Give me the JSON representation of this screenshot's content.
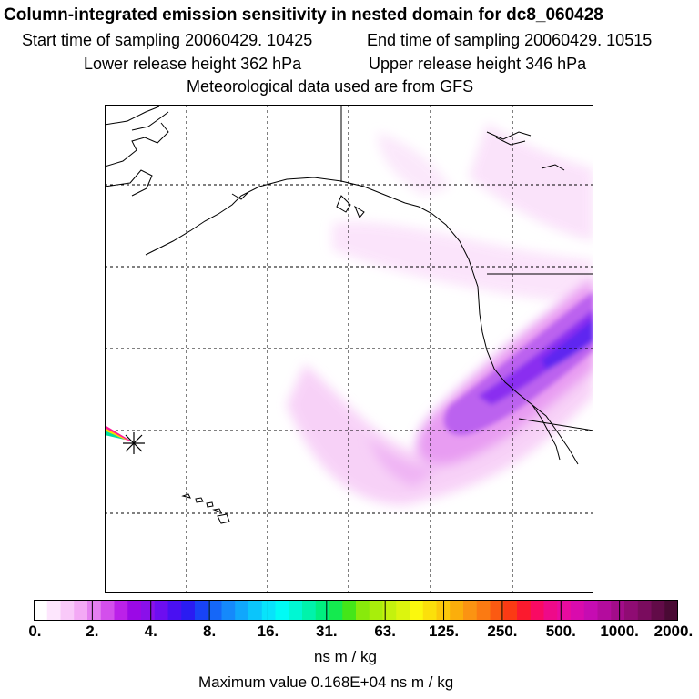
{
  "header": {
    "title": "Column-integrated emission sensitivity in nested domain for dc8_060428",
    "start_time": "Start time of sampling 20060429. 10425",
    "end_time": "End time of sampling 20060429. 10515",
    "lower_release": "Lower release height  362 hPa",
    "upper_release": "Upper release height  346 hPa",
    "met_data": "Meteorological data used are from GFS"
  },
  "legend": {
    "tick_labels": [
      "0.",
      "2.",
      "4.",
      "8.",
      "16.",
      "31.",
      "63.",
      "125.",
      "250.",
      "500.",
      "1000.",
      "2000."
    ],
    "colors": [
      "#ffffff",
      "#fde6fd",
      "#f9c9f9",
      "#f3a9f5",
      "#e47ff0",
      "#d34fec",
      "#bb21e9",
      "#9b09e6",
      "#8a10ea",
      "#6d0ef0",
      "#4a10f2",
      "#2a1cf2",
      "#1843f6",
      "#1567f8",
      "#1589fb",
      "#10a7fc",
      "#0bc5fb",
      "#08e3fb",
      "#00fbf5",
      "#00f7d3",
      "#00f3ab",
      "#00ef7f",
      "#14ea4f",
      "#44e619",
      "#88ea0b",
      "#a8ee0b",
      "#c4f20d",
      "#dcf50e",
      "#fbf80d",
      "#fbe00b",
      "#fbc80b",
      "#fbae0b",
      "#fb9312",
      "#fb7a12",
      "#fb5a12",
      "#fb3a14",
      "#fb1a2e",
      "#f90a63",
      "#ee0a89",
      "#e80b9f",
      "#d90bad",
      "#c60cb2",
      "#b40c9e",
      "#a30c8a",
      "#8f0c73",
      "#7a0c5e",
      "#620b48",
      "#4a0a34"
    ],
    "units": "ns m / kg",
    "max_value": "Maximum value  0.168E+04 ns m / kg"
  },
  "map": {
    "release_marker": "asterisk-release-point"
  }
}
